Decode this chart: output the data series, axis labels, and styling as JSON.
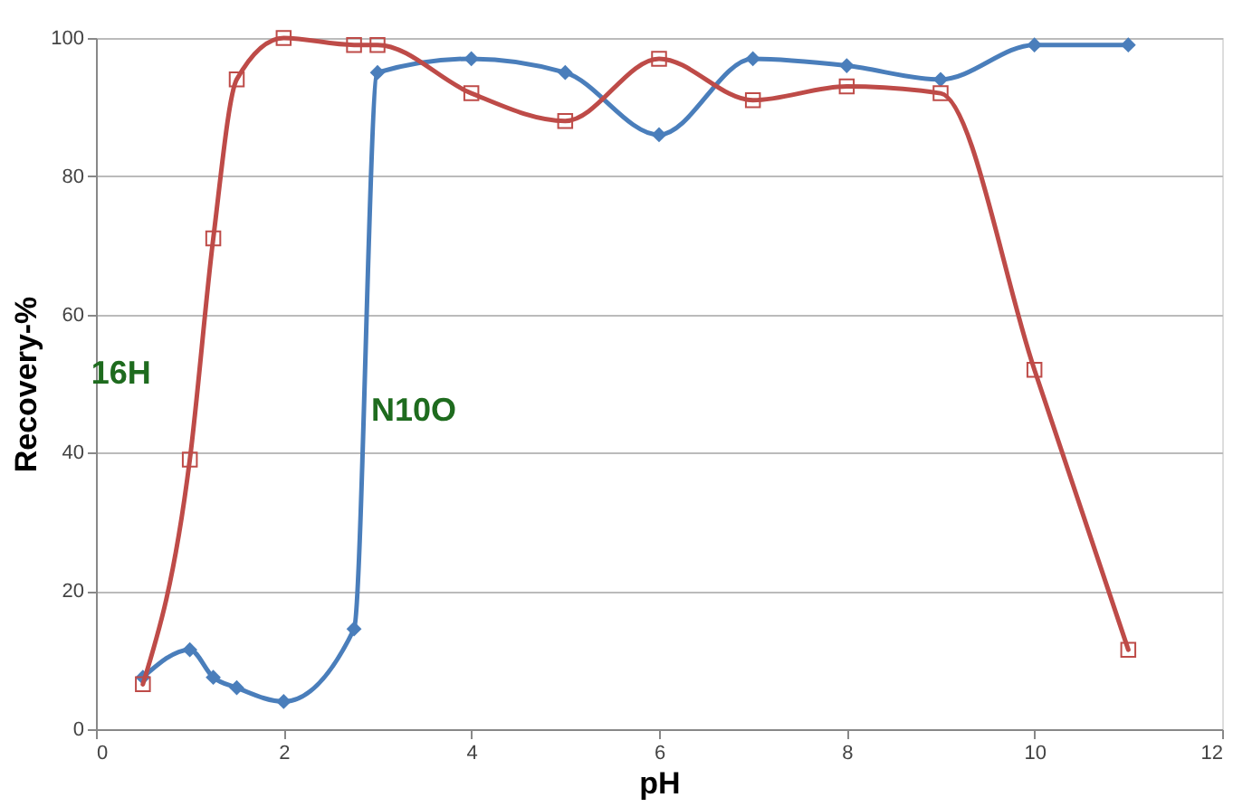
{
  "chart_data": {
    "type": "line",
    "xlabel": "pH",
    "ylabel": "Recovery-%",
    "xlim": [
      0,
      12
    ],
    "xticks": [
      0,
      2,
      4,
      6,
      8,
      10,
      12
    ],
    "ylim": [
      0,
      100
    ],
    "yticks": [
      0,
      20,
      40,
      60,
      80,
      100
    ],
    "grid": "y",
    "legend": false,
    "line_style": "solid",
    "x": [
      0.5,
      1,
      1.25,
      1.5,
      2,
      2.75,
      3,
      4,
      5,
      6,
      7,
      8,
      9,
      10,
      11
    ],
    "series": [
      {
        "name": "N10O",
        "color": "#4a7ebb",
        "marker": "diamond",
        "values": [
          7.5,
          11.5,
          7.5,
          6,
          4,
          14.5,
          95,
          97,
          95,
          86,
          97,
          96,
          94,
          99,
          99
        ]
      },
      {
        "name": "16H",
        "color": "#be4b48",
        "marker": "square",
        "values": [
          6.5,
          39,
          71,
          94,
          100,
          99,
          99,
          92,
          88,
          97,
          91,
          93,
          92,
          52,
          11.5
        ]
      }
    ]
  }
}
